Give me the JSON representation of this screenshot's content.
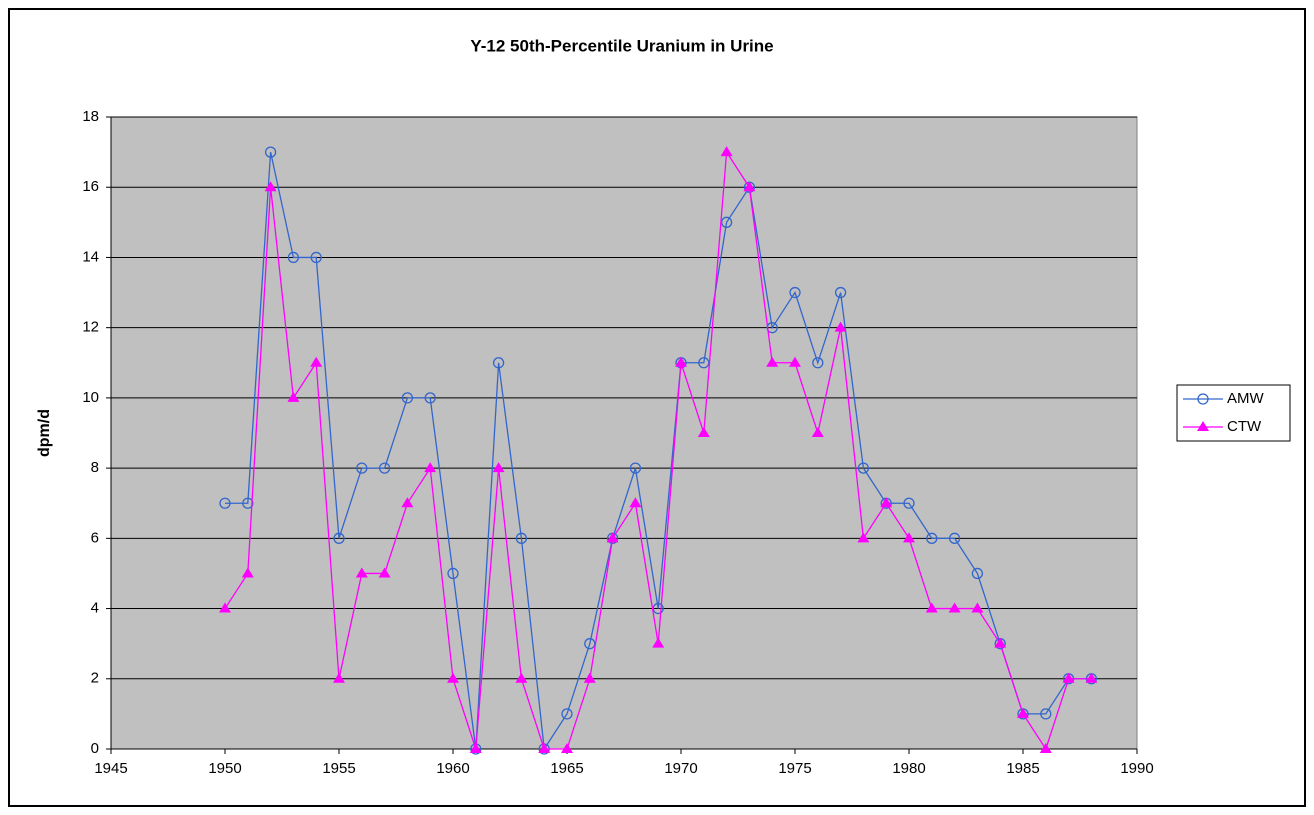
{
  "chart_data": {
    "type": "line",
    "title": "Y-12 50th-Percentile Uranium in Urine",
    "y_label": "dpm/d",
    "x": [
      1950,
      1951,
      1952,
      1953,
      1954,
      1955,
      1956,
      1957,
      1958,
      1959,
      1960,
      1961,
      1962,
      1963,
      1964,
      1965,
      1966,
      1967,
      1968,
      1969,
      1970,
      1971,
      1972,
      1973,
      1974,
      1975,
      1976,
      1977,
      1978,
      1979,
      1980,
      1981,
      1982,
      1983,
      1984,
      1985,
      1986,
      1987,
      1988
    ],
    "series": [
      {
        "name": "AMW",
        "color": "#3366cc",
        "marker": "circle",
        "values": [
          7,
          7,
          17,
          14,
          14,
          6,
          8,
          8,
          10,
          10,
          5,
          0,
          11,
          6,
          0,
          1,
          3,
          6,
          8,
          4,
          11,
          11,
          15,
          16,
          12,
          13,
          11,
          13,
          8,
          7,
          7,
          6,
          6,
          5,
          3,
          1,
          1,
          2,
          2
        ]
      },
      {
        "name": "CTW",
        "color": "#ff00ff",
        "marker": "triangle",
        "values": [
          4,
          5,
          16,
          10,
          11,
          2,
          5,
          5,
          7,
          8,
          2,
          0,
          8,
          2,
          0,
          0,
          2,
          6,
          7,
          3,
          11,
          9,
          17,
          16,
          11,
          11,
          9,
          12,
          6,
          7,
          6,
          4,
          4,
          4,
          3,
          1,
          0,
          2,
          2
        ]
      }
    ],
    "xlim": [
      1945,
      1990
    ],
    "xticks": [
      1945,
      1950,
      1955,
      1960,
      1965,
      1970,
      1975,
      1980,
      1985,
      1990
    ],
    "ylim": [
      0,
      18
    ],
    "yticks": [
      0,
      2,
      4,
      6,
      8,
      10,
      12,
      14,
      16,
      18
    ],
    "grid": true,
    "legend": "right",
    "plot_background": "#c0c0c0"
  }
}
